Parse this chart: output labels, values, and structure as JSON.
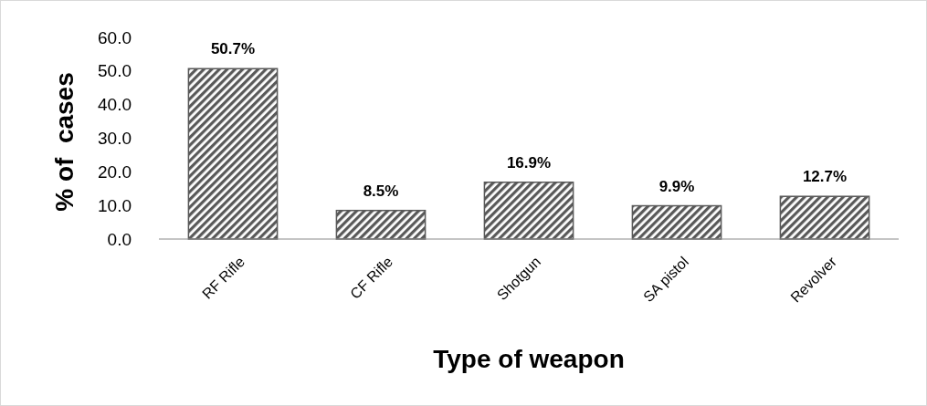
{
  "chart_data": {
    "type": "bar",
    "xlabel": "Type of weapon",
    "ylabel": "% of  cases",
    "categories": [
      "RF Rifle",
      "CF Rifle",
      "Shotgun",
      "SA pistol",
      "Revolver"
    ],
    "values": [
      50.7,
      8.5,
      16.9,
      9.9,
      12.7
    ],
    "value_labels": [
      "50.7%",
      "8.5%",
      "16.9%",
      "9.9%",
      "12.7%"
    ],
    "color": "#595959",
    "ylim": [
      0,
      60
    ],
    "yticks": [
      {
        "value": 0,
        "label": "0.0"
      },
      {
        "value": 10,
        "label": "10.0"
      },
      {
        "value": 20,
        "label": "20.0"
      },
      {
        "value": 30,
        "label": "30.0"
      },
      {
        "value": 40,
        "label": "40.0"
      },
      {
        "value": 50,
        "label": "50.0"
      },
      {
        "value": 60,
        "label": "60.0"
      }
    ],
    "grid": false
  }
}
